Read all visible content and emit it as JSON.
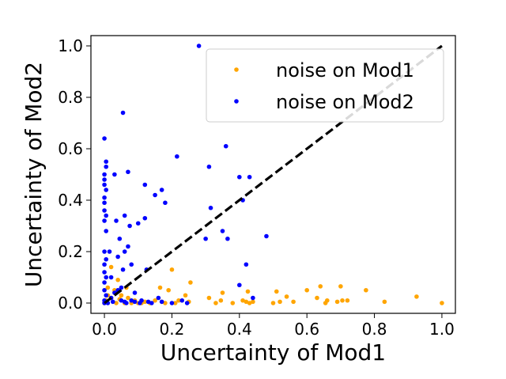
{
  "chart_data": {
    "type": "scatter",
    "title": "",
    "xlabel": "Uncertainty of Mod1",
    "ylabel": "Uncertainty of Mod2",
    "xlim": [
      -0.04,
      1.04
    ],
    "ylim": [
      -0.04,
      1.04
    ],
    "xticks": [
      "0.0",
      "0.2",
      "0.4",
      "0.6",
      "0.8",
      "1.0"
    ],
    "yticks": [
      "0.0",
      "0.2",
      "0.4",
      "0.6",
      "0.8",
      "1.0"
    ],
    "legend_position": "top-right",
    "reference_line": {
      "style": "dashed",
      "color": "#000000",
      "from": [
        0,
        0
      ],
      "to": [
        1,
        1
      ]
    },
    "series": [
      {
        "name": "noise on Mod1",
        "color": "#ffa500",
        "points": [
          [
            0.0,
            0.0
          ],
          [
            0.005,
            0.01
          ],
          [
            0.01,
            0.03
          ],
          [
            0.02,
            0.02
          ],
          [
            0.03,
            0.05
          ],
          [
            0.035,
            0.0
          ],
          [
            0.04,
            0.09
          ],
          [
            0.05,
            0.03
          ],
          [
            0.06,
            0.0
          ],
          [
            0.065,
            0.06
          ],
          [
            0.07,
            0.02
          ],
          [
            0.08,
            0.0
          ],
          [
            0.09,
            0.01
          ],
          [
            0.1,
            0.0
          ],
          [
            0.12,
            0.005
          ],
          [
            0.135,
            0.0
          ],
          [
            0.15,
            0.01
          ],
          [
            0.165,
            0.06
          ],
          [
            0.17,
            0.005
          ],
          [
            0.18,
            0.0
          ],
          [
            0.19,
            0.05
          ],
          [
            0.2,
            0.13
          ],
          [
            0.21,
            0.0
          ],
          [
            0.22,
            0.01
          ],
          [
            0.24,
            0.03
          ],
          [
            0.25,
            0.005
          ],
          [
            0.255,
            0.08
          ],
          [
            0.31,
            0.02
          ],
          [
            0.33,
            0.0
          ],
          [
            0.345,
            0.01
          ],
          [
            0.35,
            0.04
          ],
          [
            0.38,
            0.0
          ],
          [
            0.41,
            0.01
          ],
          [
            0.42,
            0.005
          ],
          [
            0.425,
            0.045
          ],
          [
            0.43,
            0.0
          ],
          [
            0.44,
            0.005
          ],
          [
            0.5,
            0.0
          ],
          [
            0.51,
            0.045
          ],
          [
            0.52,
            0.005
          ],
          [
            0.54,
            0.025
          ],
          [
            0.56,
            0.005
          ],
          [
            0.6,
            0.05
          ],
          [
            0.63,
            0.02
          ],
          [
            0.64,
            0.065
          ],
          [
            0.655,
            0.0
          ],
          [
            0.66,
            0.01
          ],
          [
            0.69,
            0.005
          ],
          [
            0.7,
            0.065
          ],
          [
            0.705,
            0.01
          ],
          [
            0.72,
            0.01
          ],
          [
            0.775,
            0.05
          ],
          [
            0.83,
            0.005
          ],
          [
            0.925,
            0.025
          ],
          [
            1.0,
            0.0
          ],
          [
            0.02,
            0.14
          ],
          [
            0.01,
            0.06
          ],
          [
            0.045,
            0.015
          ],
          [
            0.11,
            0.0
          ]
        ]
      },
      {
        "name": "noise on Mod2",
        "color": "#0000ff",
        "points": [
          [
            0.0,
            0.64
          ],
          [
            0.005,
            0.55
          ],
          [
            0.005,
            0.53
          ],
          [
            0.0,
            0.5
          ],
          [
            0.0,
            0.48
          ],
          [
            0.0,
            0.46
          ],
          [
            0.005,
            0.44
          ],
          [
            0.0,
            0.41
          ],
          [
            0.0,
            0.39
          ],
          [
            0.0,
            0.36
          ],
          [
            0.005,
            0.34
          ],
          [
            0.0,
            0.32
          ],
          [
            0.005,
            0.28
          ],
          [
            0.0,
            0.2
          ],
          [
            0.005,
            0.17
          ],
          [
            0.0,
            0.15
          ],
          [
            0.0,
            0.12
          ],
          [
            0.005,
            0.1
          ],
          [
            0.0,
            0.08
          ],
          [
            0.0,
            0.05
          ],
          [
            0.005,
            0.03
          ],
          [
            0.0,
            0.01
          ],
          [
            0.01,
            0.0
          ],
          [
            0.015,
            0.2
          ],
          [
            0.02,
            0.1
          ],
          [
            0.025,
            0.005
          ],
          [
            0.03,
            0.5
          ],
          [
            0.035,
            0.32
          ],
          [
            0.04,
            0.05
          ],
          [
            0.04,
            0.18
          ],
          [
            0.045,
            0.25
          ],
          [
            0.05,
            0.06
          ],
          [
            0.055,
            0.74
          ],
          [
            0.055,
            0.13
          ],
          [
            0.06,
            0.34
          ],
          [
            0.06,
            0.2
          ],
          [
            0.065,
            0.0
          ],
          [
            0.07,
            0.51
          ],
          [
            0.07,
            0.22
          ],
          [
            0.075,
            0.3
          ],
          [
            0.08,
            0.15
          ],
          [
            0.09,
            0.005
          ],
          [
            0.1,
            0.31
          ],
          [
            0.105,
            0.0
          ],
          [
            0.12,
            0.46
          ],
          [
            0.12,
            0.33
          ],
          [
            0.125,
            0.13
          ],
          [
            0.13,
            0.005
          ],
          [
            0.15,
            0.42
          ],
          [
            0.16,
            0.02
          ],
          [
            0.17,
            0.44
          ],
          [
            0.18,
            0.39
          ],
          [
            0.2,
            0.0
          ],
          [
            0.215,
            0.57
          ],
          [
            0.245,
            0.0
          ],
          [
            0.28,
            1.0
          ],
          [
            0.3,
            0.25
          ],
          [
            0.31,
            0.53
          ],
          [
            0.315,
            0.37
          ],
          [
            0.35,
            0.28
          ],
          [
            0.36,
            0.61
          ],
          [
            0.365,
            0.25
          ],
          [
            0.4,
            0.07
          ],
          [
            0.4,
            0.49
          ],
          [
            0.41,
            0.4
          ],
          [
            0.42,
            0.15
          ],
          [
            0.43,
            0.49
          ],
          [
            0.44,
            0.02
          ],
          [
            0.48,
            0.26
          ],
          [
            0.0,
            0.0
          ],
          [
            0.02,
            0.02
          ],
          [
            0.03,
            0.04
          ],
          [
            0.05,
            0.01
          ],
          [
            0.06,
            0.005
          ],
          [
            0.08,
            0.01
          ],
          [
            0.09,
            0.04
          ],
          [
            0.11,
            0.01
          ],
          [
            0.14,
            0.0
          ],
          [
            0.17,
            0.005
          ],
          [
            0.23,
            0.01
          ]
        ]
      }
    ]
  }
}
